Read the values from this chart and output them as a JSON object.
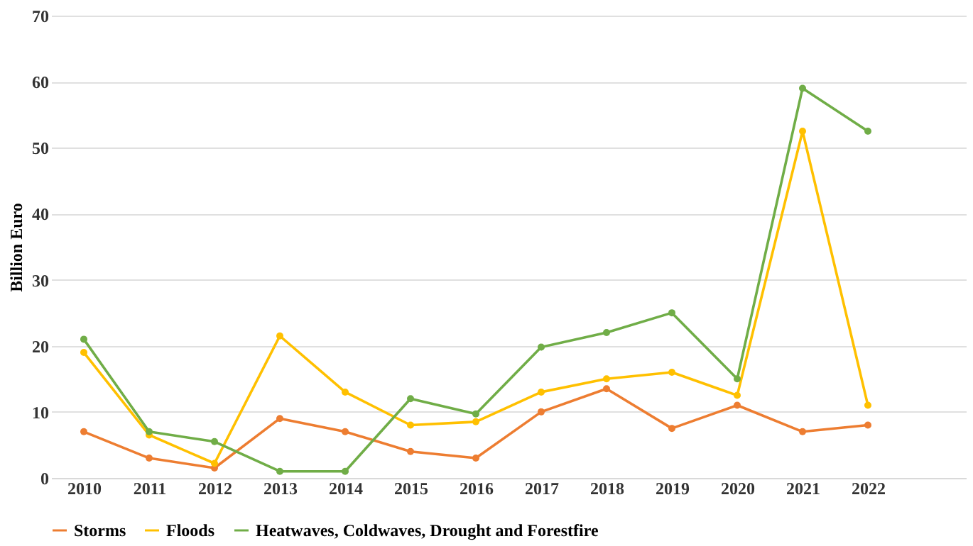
{
  "chart_data": {
    "type": "line",
    "ylabel": "Billion Euro",
    "categories": [
      "2010",
      "2011",
      "2012",
      "2013",
      "2014",
      "2015",
      "2016",
      "2017",
      "2018",
      "2019",
      "2020",
      "2021",
      "2022",
      null
    ],
    "series": [
      {
        "name": "Storms",
        "color": "#ed7d31",
        "values": [
          7,
          3,
          1.5,
          9,
          7,
          4,
          3,
          10,
          13.5,
          7.5,
          11,
          7,
          8,
          null
        ]
      },
      {
        "name": "Floods",
        "color": "#ffc000",
        "values": [
          19,
          6.5,
          2.2,
          21.5,
          13,
          8,
          8.5,
          13,
          15,
          16,
          12.5,
          52.5,
          11,
          null
        ]
      },
      {
        "name": "Heatwaves, Coldwaves, Drought and Forestfire",
        "color": "#70ad47",
        "values": [
          21,
          7,
          5.5,
          1,
          1,
          12,
          9.7,
          19.8,
          22,
          25,
          15,
          59,
          52.5,
          null
        ]
      }
    ],
    "ylim": [
      0,
      70
    ],
    "yticks": [
      0,
      10,
      20,
      30,
      40,
      50,
      60,
      70
    ],
    "grid": "y",
    "legend": "bottom",
    "marker": "circle",
    "line_style": "solid"
  }
}
